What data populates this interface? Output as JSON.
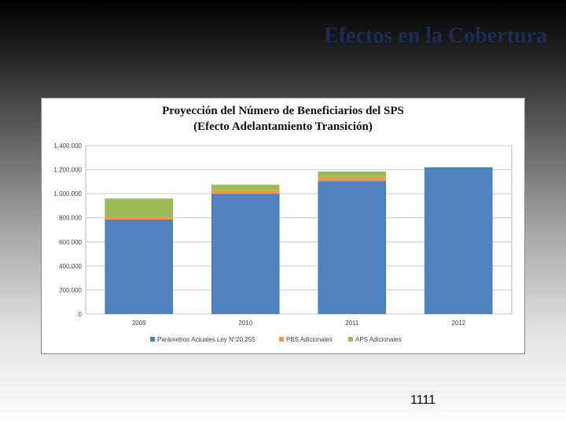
{
  "slide": {
    "title": "Efectos en la Cobertura",
    "page_number": "1111"
  },
  "colors": {
    "title": "#1f2a57",
    "series": [
      "#4f81bd",
      "#f79646",
      "#9bbb59"
    ]
  },
  "chart_data": {
    "type": "bar",
    "stacked": true,
    "title": "Proyección del Número de Beneficiarios del SPS",
    "subtitle": "(Efecto Adelantamiento Transición)",
    "categories": [
      "2009",
      "2010",
      "2011",
      "2012"
    ],
    "series": [
      {
        "name": "Parámetros Actuales Ley N°20.255",
        "values": [
          785000,
          1000000,
          1105000,
          1220000
        ]
      },
      {
        "name": "PBS Adicionales",
        "values": [
          20000,
          35000,
          35000,
          0
        ]
      },
      {
        "name": "APS Adicionales",
        "values": [
          155000,
          40000,
          45000,
          0
        ]
      }
    ],
    "ylim": [
      0,
      1400000
    ],
    "yticks": [
      0,
      200000,
      400000,
      600000,
      800000,
      1000000,
      1200000,
      1400000
    ],
    "ytick_labels": [
      "0",
      "200.000",
      "400.000",
      "600.000",
      "800.000",
      "1.000.000",
      "1.200.000",
      "1.400.000"
    ],
    "gridlines": true,
    "legend_position": "bottom",
    "xlabel": "",
    "ylabel": ""
  }
}
